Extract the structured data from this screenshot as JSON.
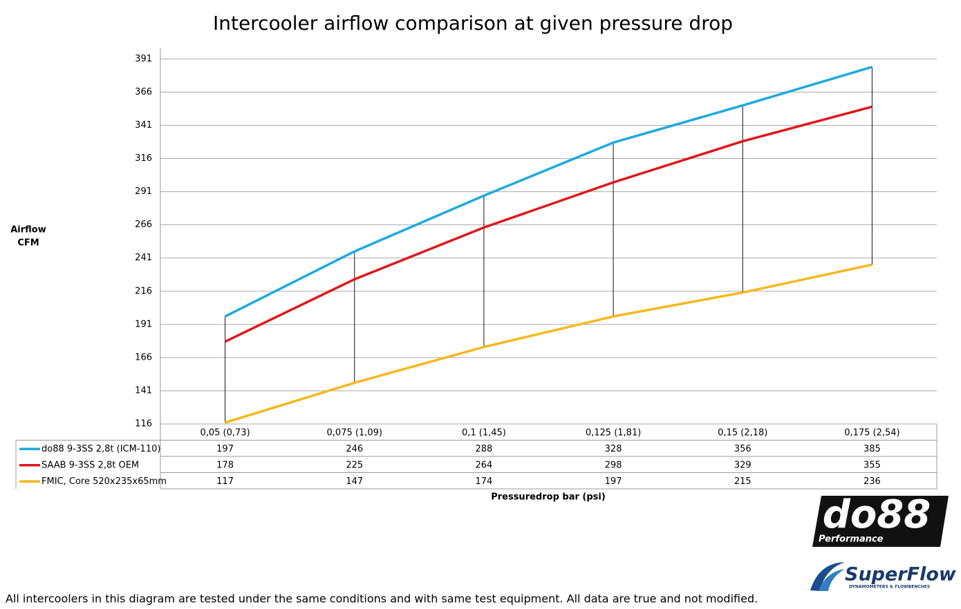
{
  "chart_data": {
    "type": "line",
    "title": "Intercooler airflow comparison at given pressure drop",
    "ylabel_lines": [
      "Airflow",
      "CFM"
    ],
    "xlabel": "Pressuredrop bar (psi)",
    "categories": [
      "0,05 (0,73)",
      "0,075 (1,09)",
      "0,1 (1,45)",
      "0,125 (1,81)",
      "0,15 (2,18)",
      "0,175 (2,54)"
    ],
    "series": [
      {
        "name": "do88 9-3SS 2,8t (ICM-110)",
        "color": "#1ea9e1",
        "values": [
          197,
          246,
          288,
          328,
          356,
          385
        ]
      },
      {
        "name": "SAAB 9-3SS 2,8t OEM",
        "color": "#e0161b",
        "values": [
          178,
          225,
          264,
          298,
          329,
          355
        ]
      },
      {
        "name": "FMIC, Core 520x235x65mm",
        "color": "#f5b81c",
        "values": [
          117,
          147,
          174,
          197,
          215,
          236
        ]
      }
    ],
    "ylim": [
      116,
      399
    ],
    "yticks": [
      116,
      141,
      166,
      191,
      216,
      241,
      266,
      291,
      316,
      341,
      366,
      391
    ],
    "grid": true,
    "data_table": true,
    "footnote": "All intercoolers in this diagram are tested under the same conditions and with same test equipment. All data are true and not modified.",
    "logos": {
      "do88": "do88",
      "do88_sub": "Performance",
      "superflow": "SuperFlow",
      "superflow_sub": "DYNAMOMETERS & FLOWBENCHES"
    }
  }
}
